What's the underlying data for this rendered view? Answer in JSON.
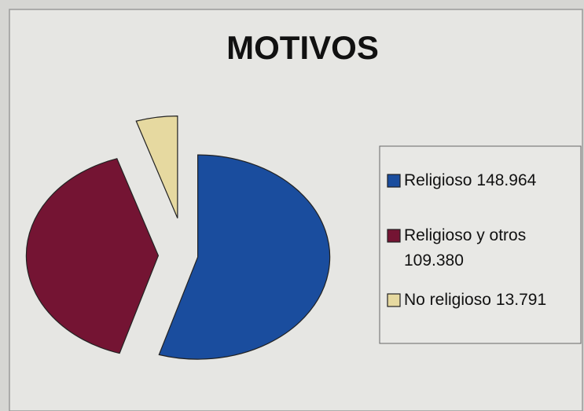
{
  "chart_data": {
    "type": "pie",
    "title": "MOTIVOS",
    "categories": [
      "Religioso",
      "Religioso y otros",
      "No religioso"
    ],
    "values": [
      148964,
      109380,
      13791
    ],
    "value_labels": [
      "148.964",
      "109.380",
      "13.791"
    ],
    "colors": [
      "#1a4d9e",
      "#741433",
      "#e6d9a0"
    ],
    "legend": "right"
  }
}
